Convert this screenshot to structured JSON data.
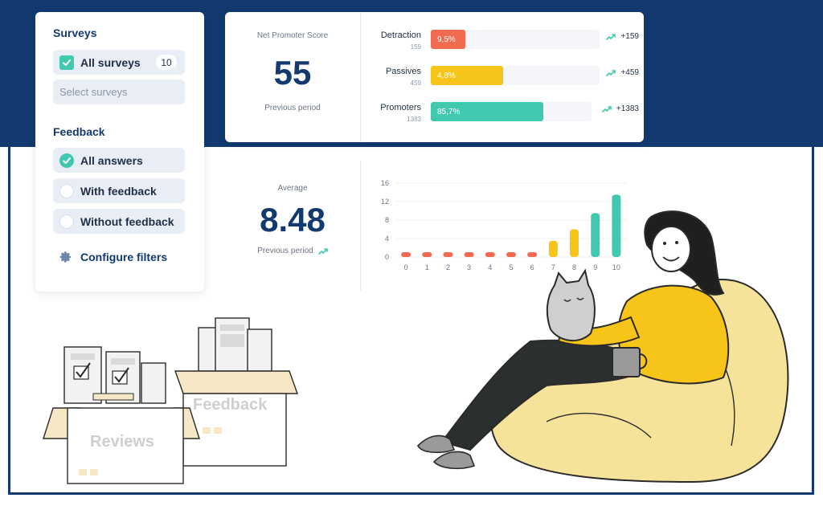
{
  "filters": {
    "surveys_title": "Surveys",
    "all_surveys_label": "All surveys",
    "all_surveys_count": "10",
    "select_placeholder": "Select surveys",
    "feedback_title": "Feedback",
    "options": [
      {
        "label": "All answers",
        "checked": true
      },
      {
        "label": "With feedback",
        "checked": false
      },
      {
        "label": "Without feedback",
        "checked": false
      }
    ],
    "configure_label": "Configure filters"
  },
  "nps": {
    "label": "Net Promoter Score",
    "score": "55",
    "previous_label": "Previous period",
    "rows": [
      {
        "name": "Detraction",
        "count": "159",
        "percent_label": "9,5%",
        "percent": 9.5,
        "color": "#f26a4f",
        "delta": "+159"
      },
      {
        "name": "Passives",
        "count": "459",
        "percent_label": "4,8%",
        "percent": 4.8,
        "color": "#f7c41a",
        "delta": "+459"
      },
      {
        "name": "Promoters",
        "count": "1383",
        "percent_label": "85,7%",
        "percent": 85.7,
        "color": "#41c9b0",
        "delta": "+1383"
      }
    ]
  },
  "average": {
    "label": "Average",
    "value": "8.48",
    "previous_label": "Previous period"
  },
  "chart_data": {
    "type": "bar",
    "categories": [
      "0",
      "1",
      "2",
      "3",
      "4",
      "5",
      "6",
      "7",
      "8",
      "9",
      "10"
    ],
    "values": [
      1,
      1,
      1,
      1,
      1,
      1,
      1,
      3.5,
      6,
      9.5,
      13.5
    ],
    "yticks": [
      "16",
      "12",
      "8",
      "4",
      "0"
    ],
    "ylim": [
      0,
      16
    ],
    "colors": {
      "detractor": "#f26a4f",
      "passive": "#f7c41a",
      "promoter": "#41c9b0"
    },
    "grid": true
  },
  "illustration": {
    "box_left_label": "Reviews",
    "box_right_label": "Feedback"
  },
  "colors": {
    "navy": "#123a6e",
    "accent": "#41c9b0",
    "yellow": "#f7c41a",
    "red": "#f26a4f"
  }
}
